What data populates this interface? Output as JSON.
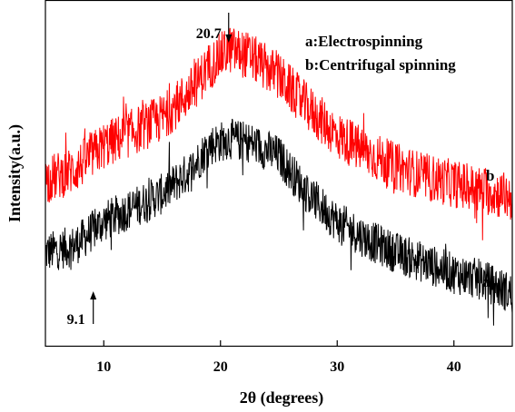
{
  "chart_data": {
    "type": "line",
    "title": "",
    "xlabel": "2θ (degrees)",
    "ylabel": "Intensity(a.u.)",
    "xlim": [
      5,
      45
    ],
    "ylim": [
      0,
      100
    ],
    "x_ticks": [
      "10",
      "20",
      "30",
      "40"
    ],
    "y_ticks_shown": false,
    "grid": false,
    "legend_position": "top-right",
    "legend_entries": [
      "a:Electrospinning",
      "b:Centrifugal spinning"
    ],
    "series": [
      {
        "name": "a",
        "color": "#000000",
        "label_position_x": 43.2,
        "x": [
          5,
          7.5,
          10,
          12.5,
          15,
          17.5,
          19,
          20.7,
          22.5,
          25,
          27.5,
          30,
          32.5,
          35,
          37.5,
          40,
          42.5,
          45
        ],
        "y": [
          27,
          29,
          36,
          40,
          44,
          51,
          58,
          60,
          59,
          55,
          44,
          36,
          31,
          27,
          24,
          21,
          19,
          15
        ],
        "noise_amplitude": 6
      },
      {
        "name": "b",
        "color": "#ff0000",
        "label_position_x": 43.2,
        "x": [
          5,
          7.5,
          10,
          12.5,
          15,
          17.5,
          19,
          20.7,
          22.5,
          25,
          27.5,
          30,
          32.5,
          35,
          37.5,
          40,
          42.5,
          45
        ],
        "y": [
          48,
          51,
          58,
          62,
          66,
          74,
          81,
          86,
          84,
          78,
          69,
          61,
          56,
          52,
          49,
          47,
          45,
          43
        ],
        "noise_amplitude": 7
      }
    ],
    "annotations": [
      {
        "text": "20.7",
        "x": 20.7,
        "arrow": "down"
      },
      {
        "text": "9.1",
        "x": 9.1,
        "arrow": "up"
      }
    ]
  }
}
